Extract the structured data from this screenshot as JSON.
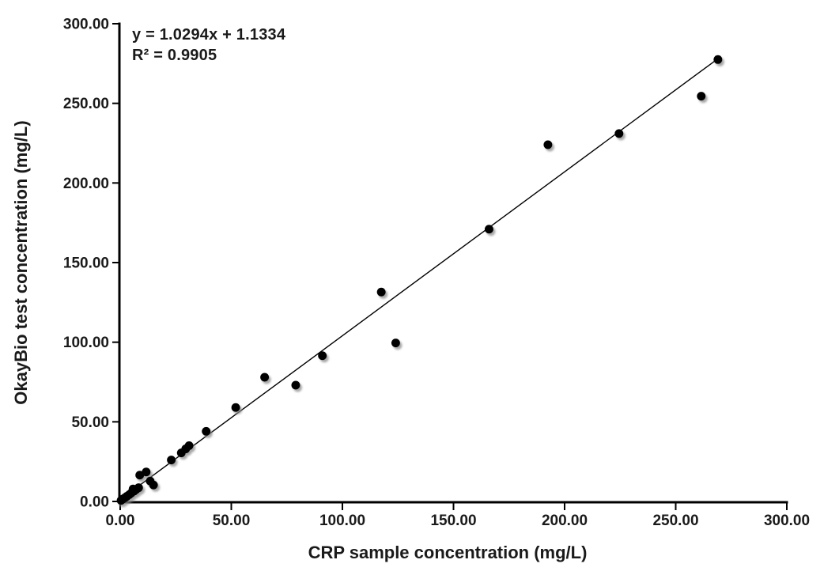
{
  "chart_data": {
    "type": "scatter",
    "title": "",
    "xlabel": "CRP sample concentration (mg/L)",
    "ylabel": "OkayBio test concentration (mg/L)",
    "equation": "y = 1.0294x + 1.1334",
    "r_squared": "R² = 0.9905",
    "xlim": [
      0,
      300
    ],
    "ylim": [
      0,
      300
    ],
    "grid": false,
    "legend_position": "none",
    "tick_values": [
      0,
      50,
      100,
      150,
      200,
      250,
      300
    ],
    "xtick_labels": [
      "0.00",
      "50.00",
      "100.00",
      "150.00",
      "200.00",
      "250.00",
      "300.00"
    ],
    "ytick_labels": [
      "0.00",
      "50.00",
      "100.00",
      "150.00",
      "200.00",
      "250.00",
      "300.00"
    ],
    "marker_color": "#000000",
    "marker_shadow_color": "#8a8a8a",
    "axis_color": "#000000",
    "trendline": {
      "slope": 1.0294,
      "intercept": 1.1334,
      "x_start": 0,
      "x_end": 269.4,
      "color": "#000000"
    },
    "points": [
      [
        0.4,
        0.6
      ],
      [
        1.2,
        1.5
      ],
      [
        2.1,
        2.3
      ],
      [
        3.0,
        3.2
      ],
      [
        4.1,
        4.3
      ],
      [
        5.0,
        5.3
      ],
      [
        5.8,
        7.8
      ],
      [
        6.3,
        6.5
      ],
      [
        7.2,
        7.5
      ],
      [
        8.3,
        8.6
      ],
      [
        8.8,
        16.5
      ],
      [
        11.7,
        18.5
      ],
      [
        13.5,
        12.8
      ],
      [
        15.0,
        10.3
      ],
      [
        23.0,
        26.0
      ],
      [
        27.5,
        30.5
      ],
      [
        29.5,
        33.0
      ],
      [
        31.0,
        35.0
      ],
      [
        38.7,
        44.0
      ],
      [
        52.0,
        59.0
      ],
      [
        65.0,
        78.0
      ],
      [
        79.0,
        73.0
      ],
      [
        91.0,
        91.5
      ],
      [
        117.5,
        131.5
      ],
      [
        124.0,
        99.5
      ],
      [
        166.0,
        171.0
      ],
      [
        192.5,
        224.0
      ],
      [
        224.5,
        231.0
      ],
      [
        261.5,
        254.5
      ],
      [
        269.0,
        277.5
      ]
    ]
  }
}
